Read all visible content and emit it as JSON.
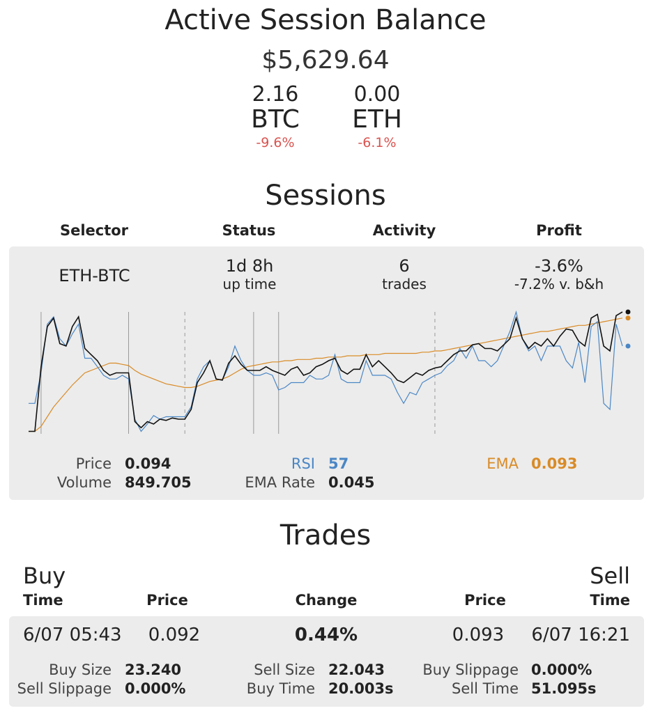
{
  "balance": {
    "title": "Active Session Balance",
    "amount": "$5,629.64",
    "currencies": [
      {
        "amount": "2.16",
        "symbol": "BTC",
        "change": "-9.6%"
      },
      {
        "amount": "0.00",
        "symbol": "ETH",
        "change": "-6.1%"
      }
    ]
  },
  "sessions": {
    "title": "Sessions",
    "headers": [
      "Selector",
      "Status",
      "Activity",
      "Profit"
    ],
    "row": {
      "selector": "ETH-BTC",
      "status_value": "1d 8h",
      "status_label": "up time",
      "activity_value": "6",
      "activity_label": "trades",
      "profit_value": "-3.6%",
      "profit_vs": "-7.2% v. b&h"
    },
    "stats": {
      "price_label": "Price",
      "price_value": "0.094",
      "volume_label": "Volume",
      "volume_value": "849.705",
      "rsi_label": "RSI",
      "rsi_value": "57",
      "ema_rate_label": "EMA Rate",
      "ema_rate_value": "0.045",
      "ema_label": "EMA",
      "ema_value": "0.093"
    }
  },
  "chart_data": {
    "type": "line",
    "title": "",
    "xlabel": "",
    "ylabel": "",
    "grid": false,
    "colors": {
      "price": "#111111",
      "rsi": "#4a86c5",
      "ema": "#d98b27",
      "markers": "#999999"
    },
    "series": [
      {
        "key": "price",
        "values": [
          0.02,
          0.02,
          0.55,
          0.88,
          0.95,
          0.74,
          0.72,
          0.88,
          0.96,
          0.7,
          0.65,
          0.6,
          0.52,
          0.48,
          0.5,
          0.5,
          0.5,
          0.1,
          0.05,
          0.1,
          0.08,
          0.12,
          0.11,
          0.13,
          0.12,
          0.12,
          0.2,
          0.42,
          0.5,
          0.6,
          0.45,
          0.44,
          0.58,
          0.64,
          0.57,
          0.52,
          0.52,
          0.52,
          0.55,
          0.52,
          0.5,
          0.48,
          0.53,
          0.55,
          0.48,
          0.5,
          0.55,
          0.57,
          0.6,
          0.62,
          0.52,
          0.49,
          0.53,
          0.53,
          0.65,
          0.55,
          0.6,
          0.55,
          0.5,
          0.44,
          0.42,
          0.46,
          0.5,
          0.48,
          0.52,
          0.54,
          0.55,
          0.6,
          0.65,
          0.68,
          0.68,
          0.73,
          0.74,
          0.7,
          0.7,
          0.68,
          0.73,
          0.78,
          0.95,
          0.78,
          0.7,
          0.75,
          0.72,
          0.78,
          0.72,
          0.8,
          0.86,
          0.85,
          0.76,
          0.72,
          0.95,
          0.98,
          0.72,
          0.68,
          0.97,
          1.0
        ]
      },
      {
        "key": "rsi",
        "values": [
          0.25,
          0.25,
          0.5,
          0.9,
          0.96,
          0.78,
          0.72,
          0.82,
          0.9,
          0.62,
          0.62,
          0.55,
          0.48,
          0.45,
          0.45,
          0.48,
          0.45,
          0.12,
          0.02,
          0.08,
          0.15,
          0.12,
          0.14,
          0.14,
          0.14,
          0.14,
          0.22,
          0.45,
          0.55,
          0.6,
          0.45,
          0.44,
          0.55,
          0.72,
          0.6,
          0.52,
          0.48,
          0.48,
          0.5,
          0.48,
          0.36,
          0.38,
          0.42,
          0.42,
          0.42,
          0.48,
          0.45,
          0.45,
          0.48,
          0.65,
          0.45,
          0.42,
          0.42,
          0.42,
          0.6,
          0.48,
          0.48,
          0.48,
          0.45,
          0.34,
          0.25,
          0.34,
          0.32,
          0.42,
          0.45,
          0.48,
          0.5,
          0.56,
          0.6,
          0.7,
          0.62,
          0.72,
          0.6,
          0.6,
          0.55,
          0.6,
          0.72,
          0.84,
          1.0,
          0.78,
          0.68,
          0.72,
          0.6,
          0.72,
          0.72,
          0.72,
          0.6,
          0.54,
          0.75,
          0.42,
          0.88,
          0.92,
          0.25,
          0.2,
          0.9,
          0.72
        ]
      },
      {
        "key": "ema",
        "values": [
          0.02,
          0.02,
          0.06,
          0.14,
          0.22,
          0.28,
          0.34,
          0.4,
          0.45,
          0.5,
          0.52,
          0.54,
          0.56,
          0.58,
          0.58,
          0.57,
          0.56,
          0.52,
          0.49,
          0.47,
          0.45,
          0.43,
          0.41,
          0.4,
          0.39,
          0.38,
          0.38,
          0.39,
          0.41,
          0.43,
          0.44,
          0.45,
          0.47,
          0.5,
          0.53,
          0.55,
          0.56,
          0.57,
          0.58,
          0.59,
          0.59,
          0.6,
          0.6,
          0.61,
          0.61,
          0.61,
          0.62,
          0.62,
          0.63,
          0.63,
          0.63,
          0.64,
          0.64,
          0.64,
          0.65,
          0.65,
          0.65,
          0.66,
          0.66,
          0.66,
          0.66,
          0.66,
          0.66,
          0.67,
          0.67,
          0.68,
          0.68,
          0.69,
          0.7,
          0.71,
          0.72,
          0.73,
          0.74,
          0.75,
          0.76,
          0.77,
          0.78,
          0.79,
          0.8,
          0.81,
          0.82,
          0.83,
          0.84,
          0.84,
          0.85,
          0.86,
          0.87,
          0.88,
          0.89,
          0.89,
          0.9,
          0.91,
          0.92,
          0.93,
          0.94,
          0.95
        ]
      }
    ],
    "markers": [
      {
        "index": 2,
        "style": "solid"
      },
      {
        "index": 16,
        "style": "solid"
      },
      {
        "index": 25,
        "style": "dashed"
      },
      {
        "index": 36,
        "style": "solid"
      },
      {
        "index": 40,
        "style": "solid"
      },
      {
        "index": 65,
        "style": "dashed"
      }
    ]
  },
  "trades": {
    "title": "Trades",
    "buy_label": "Buy",
    "sell_label": "Sell",
    "headers": {
      "time": "Time",
      "price": "Price",
      "change": "Change",
      "price2": "Price",
      "time2": "Time"
    },
    "row": {
      "buy_time": "6/07 05:43",
      "buy_price": "0.092",
      "change": "0.44%",
      "sell_price": "0.093",
      "sell_time": "6/07 16:21"
    },
    "details": {
      "buy_size_label": "Buy Size",
      "buy_size_value": "23.240",
      "sell_slippage_label": "Sell Slippage",
      "sell_slippage_value": "0.000%",
      "sell_size_label": "Sell Size",
      "sell_size_value": "22.043",
      "buy_time_label": "Buy Time",
      "buy_time_value": "20.003s",
      "buy_slippage_label": "Buy Slippage",
      "buy_slippage_value": "0.000%",
      "sell_time_label": "Sell Time",
      "sell_time_value": "51.095s"
    }
  }
}
